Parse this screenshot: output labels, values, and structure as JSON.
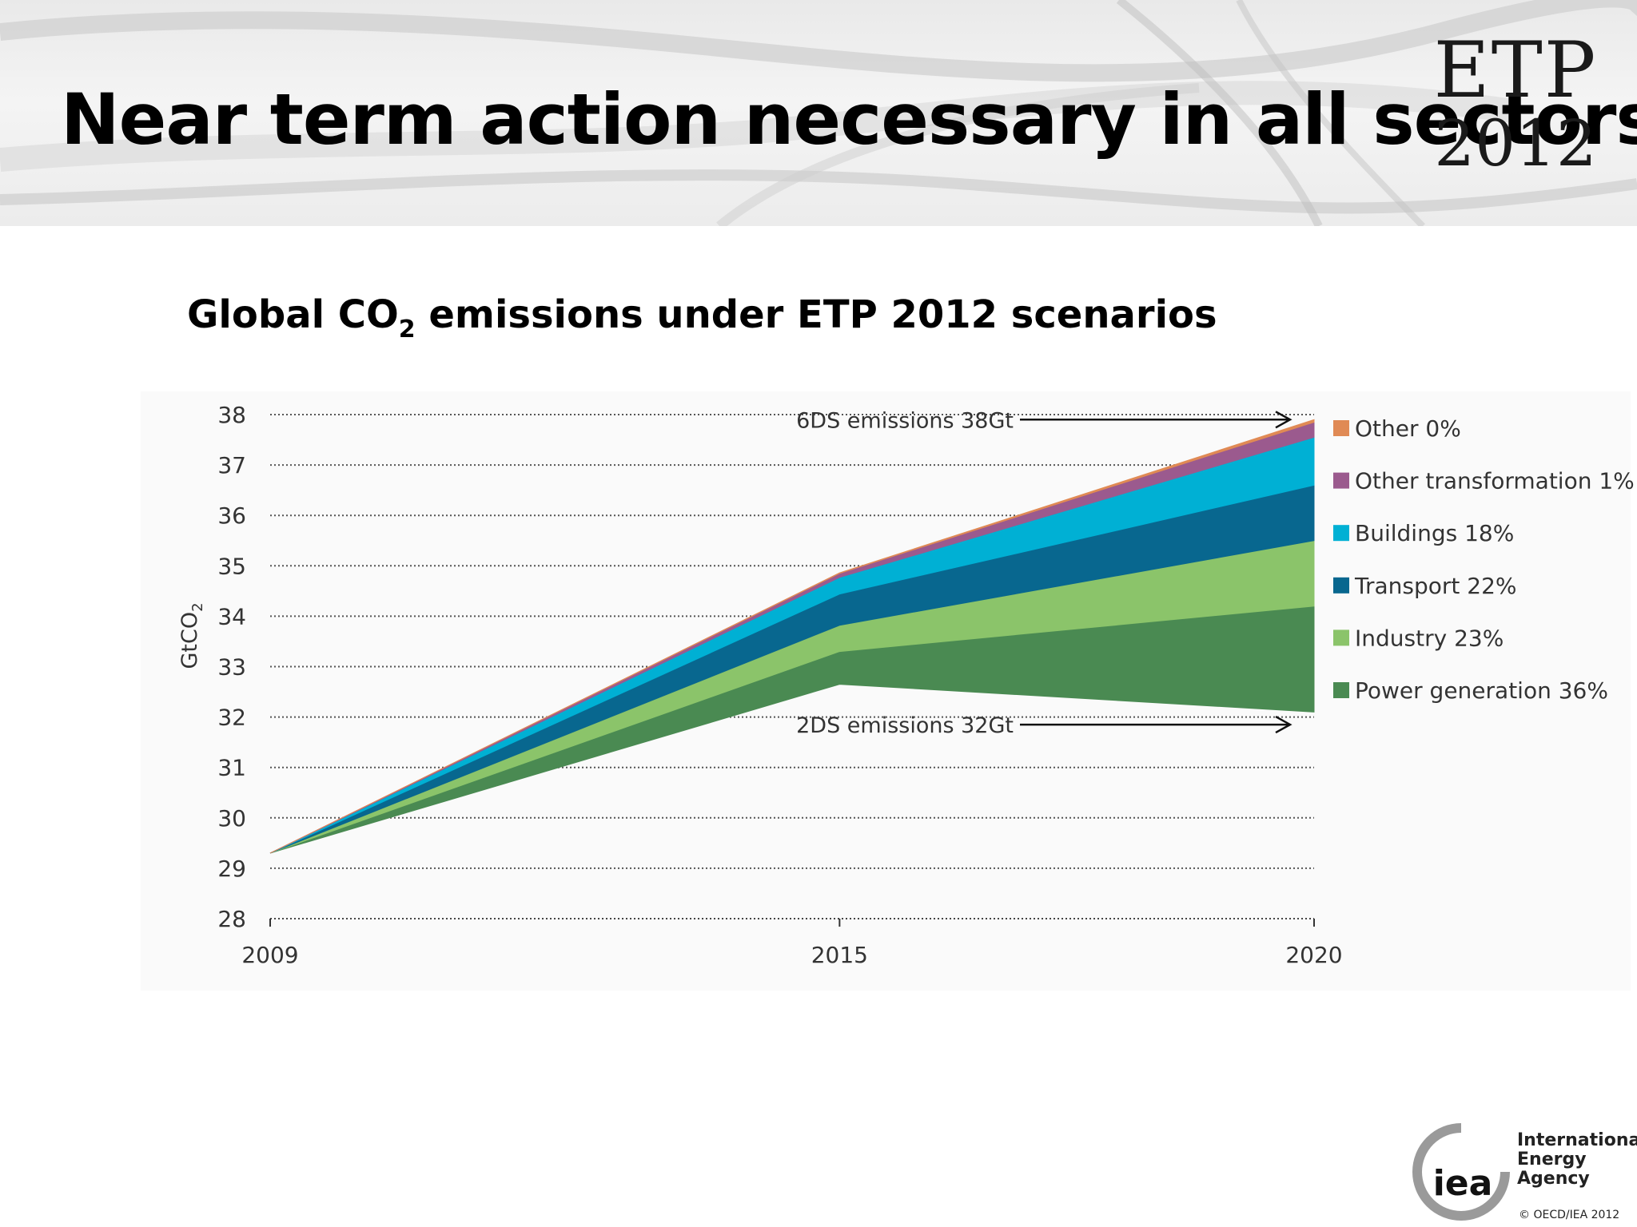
{
  "slide": {
    "title": "Near term action necessary in all sectors",
    "logo_line1": "ETP",
    "logo_line2": "2012",
    "subtitle_pre": "Global CO",
    "subtitle_sub": "2",
    "subtitle_post": " emissions under ETP 2012 scenarios"
  },
  "chart_data": {
    "type": "area",
    "title": "Global CO2 emissions under ETP 2012 scenarios",
    "ylabel": "GtCO2",
    "ylabel_main": "GtCO",
    "ylabel_sub": "2",
    "x": [
      "2009",
      "2015",
      "2020"
    ],
    "ylim": [
      28,
      38
    ],
    "yticks": [
      28,
      29,
      30,
      31,
      32,
      33,
      34,
      35,
      36,
      37,
      38
    ],
    "grid": "horizontal dotted",
    "legend_position": "right",
    "baseline": [
      29.3,
      32.65,
      32.1
    ],
    "series": [
      {
        "name": "Power generation 36%",
        "color": "#4a8a52",
        "values": [
          0,
          0.65,
          2.1
        ]
      },
      {
        "name": "Industry 23%",
        "color": "#8bc46a",
        "values": [
          0,
          0.52,
          1.3
        ]
      },
      {
        "name": "Transport 22%",
        "color": "#08678f",
        "values": [
          0,
          0.62,
          1.1
        ]
      },
      {
        "name": "Buildings 18%",
        "color": "#00b0d4",
        "values": [
          0,
          0.33,
          0.95
        ]
      },
      {
        "name": "Other transformation 1%",
        "color": "#9b5a8e",
        "values": [
          0,
          0.08,
          0.3
        ]
      },
      {
        "name": "Other 0%",
        "color": "#e08a55",
        "values": [
          0,
          0.01,
          0.05
        ]
      }
    ],
    "annotations": [
      {
        "text": "6DS emissions 38Gt",
        "value": 37.9
      },
      {
        "text": "2DS emissions 32Gt",
        "value": 31.85
      }
    ]
  },
  "footer": {
    "org_line1": "International",
    "org_line2": "Energy Agency",
    "org_logo_text": "iea",
    "copyright": "© OECD/IEA 2012"
  }
}
